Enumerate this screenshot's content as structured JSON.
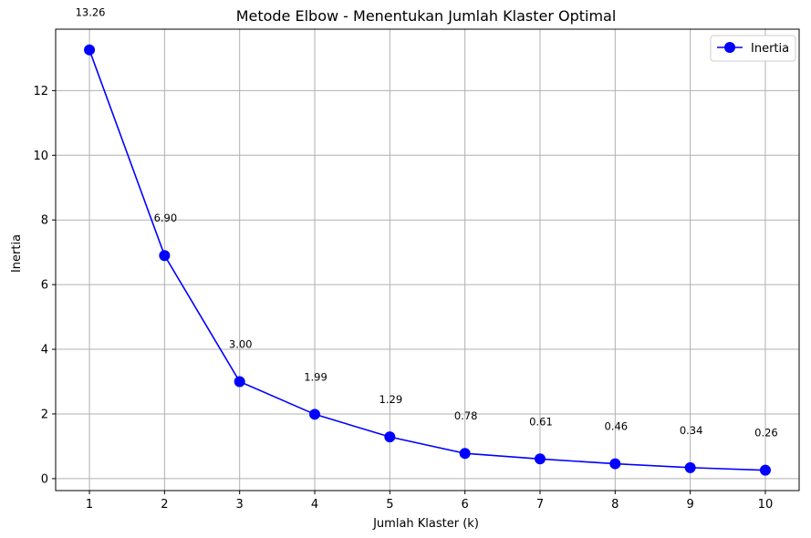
{
  "chart_data": {
    "type": "line",
    "title": "Metode Elbow - Menentukan Jumlah Klaster Optimal",
    "xlabel": "Jumlah Klaster (k)",
    "ylabel": "Inertia",
    "x": [
      1,
      2,
      3,
      4,
      5,
      6,
      7,
      8,
      9,
      10
    ],
    "xticks": [
      "1",
      "2",
      "3",
      "4",
      "5",
      "6",
      "7",
      "8",
      "9",
      "10"
    ],
    "yticks": [
      "0",
      "2",
      "4",
      "6",
      "8",
      "10",
      "12"
    ],
    "ylim": [
      -0.37,
      13.9
    ],
    "xlim": [
      0.55,
      10.45
    ],
    "grid": true,
    "legend_position": "top-right",
    "series": [
      {
        "name": "Inertia",
        "color": "#0000ff",
        "marker": "circle",
        "values": [
          13.26,
          6.9,
          3.0,
          1.99,
          1.29,
          0.78,
          0.61,
          0.46,
          0.34,
          0.26
        ],
        "labels": [
          "13.26",
          "6.90",
          "3.00",
          "1.99",
          "1.29",
          "0.78",
          "0.61",
          "0.46",
          "0.34",
          "0.26"
        ]
      }
    ]
  }
}
